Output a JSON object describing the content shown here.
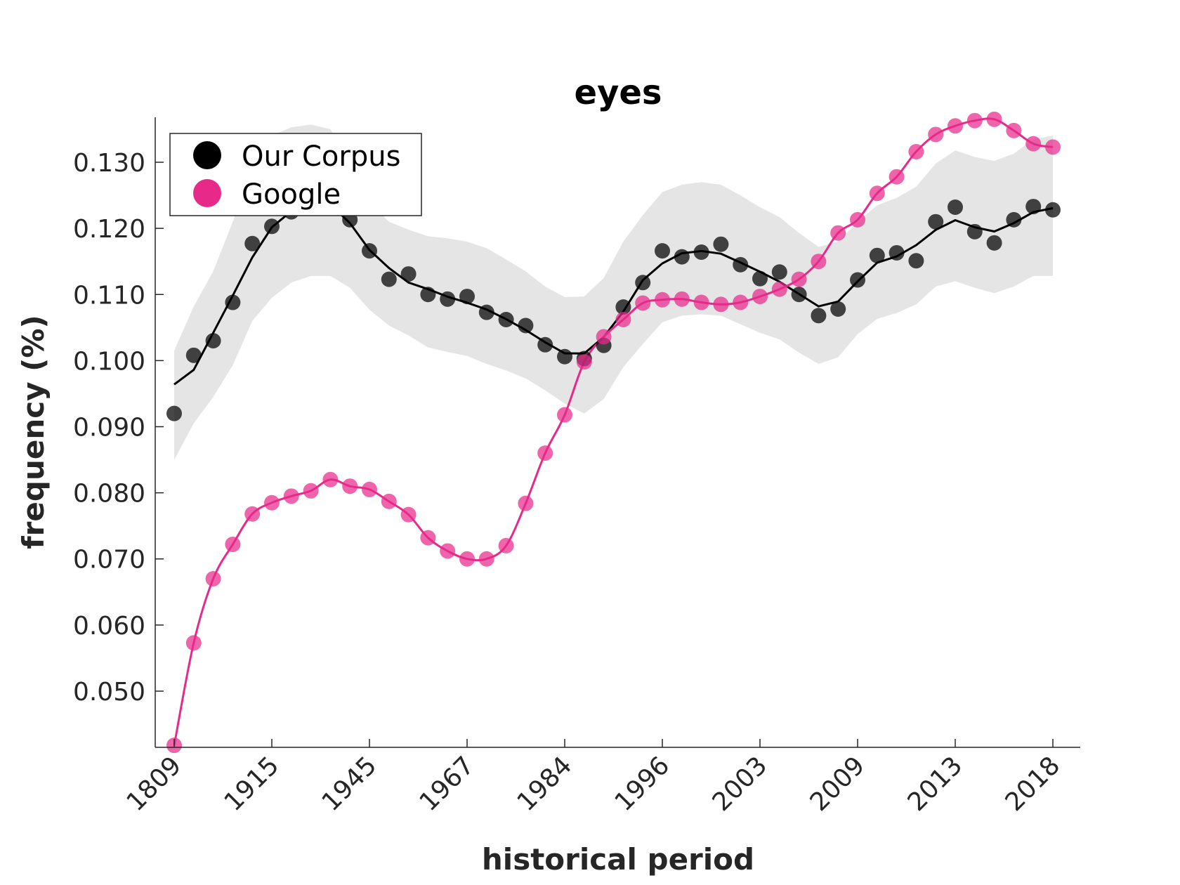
{
  "chart_data": {
    "type": "line",
    "title": "eyes",
    "xlabel": "historical period",
    "ylabel": "frequency (%)",
    "ylim": [
      0.0415,
      0.1368
    ],
    "grid": false,
    "legend_position": "top-left",
    "x_tick_labels": [
      "1809",
      "1915",
      "1945",
      "1967",
      "1984",
      "1996",
      "2003",
      "2009",
      "2013",
      "2018"
    ],
    "x_tick_index": [
      0,
      5,
      10,
      15,
      20,
      25,
      30,
      35,
      40,
      45
    ],
    "y_ticks": [
      0.05,
      0.06,
      0.07,
      0.08,
      0.09,
      0.1,
      0.11,
      0.12,
      0.13
    ],
    "y_tick_labels": [
      "0.050",
      "0.060",
      "0.070",
      "0.080",
      "0.090",
      "0.100",
      "0.110",
      "0.120",
      "0.130"
    ],
    "colors": {
      "corpus": "#000000",
      "google": "#e7298a",
      "band": "#e5e5e5"
    },
    "series": [
      {
        "name": "Our Corpus",
        "values": [
          0.092,
          0.1008,
          0.103,
          0.1088,
          0.1177,
          0.1203,
          0.1225,
          0.125,
          0.1245,
          0.1213,
          0.1166,
          0.1123,
          0.1131,
          0.11,
          0.1093,
          0.1097,
          0.1073,
          0.1062,
          0.1053,
          0.1024,
          0.1006,
          0.1003,
          0.1023,
          0.1081,
          0.1118,
          0.1166,
          0.1157,
          0.1164,
          0.1176,
          0.1145,
          0.1124,
          0.1134,
          0.11,
          0.1068,
          0.1078,
          0.1122,
          0.1159,
          0.1163,
          0.1151,
          0.121,
          0.1232,
          0.1195,
          0.1178,
          0.1213,
          0.1233,
          0.1228
        ],
        "band_upper": [
          0.1015,
          0.1082,
          0.1135,
          0.121,
          0.129,
          0.134,
          0.1353,
          0.1357,
          0.135,
          0.13,
          0.124,
          0.121,
          0.1198,
          0.1188,
          0.1185,
          0.118,
          0.117,
          0.1153,
          0.1135,
          0.1112,
          0.1096,
          0.1097,
          0.1125,
          0.118,
          0.122,
          0.1255,
          0.1266,
          0.127,
          0.1266,
          0.125,
          0.1232,
          0.1217,
          0.1193,
          0.1172,
          0.118,
          0.121,
          0.1235,
          0.1246,
          0.1263,
          0.1298,
          0.1318,
          0.1308,
          0.1302,
          0.1313,
          0.1335,
          0.134
        ],
        "band_lower": [
          0.085,
          0.0905,
          0.0945,
          0.0993,
          0.106,
          0.1095,
          0.1118,
          0.1128,
          0.1128,
          0.111,
          0.1077,
          0.1053,
          0.1038,
          0.102,
          0.1013,
          0.1007,
          0.0995,
          0.0985,
          0.0973,
          0.0955,
          0.0935,
          0.092,
          0.0942,
          0.099,
          0.1025,
          0.1058,
          0.1068,
          0.107,
          0.1068,
          0.1055,
          0.1042,
          0.1032,
          0.1012,
          0.0995,
          0.1005,
          0.104,
          0.1063,
          0.1072,
          0.1085,
          0.1112,
          0.112,
          0.111,
          0.1102,
          0.1112,
          0.1128,
          0.1128
        ]
      },
      {
        "name": "Google",
        "values": [
          0.0418,
          0.0573,
          0.067,
          0.0722,
          0.0768,
          0.0785,
          0.0795,
          0.0803,
          0.082,
          0.081,
          0.0805,
          0.0787,
          0.0767,
          0.0732,
          0.0712,
          0.07,
          0.07,
          0.072,
          0.0784,
          0.086,
          0.0918,
          0.0998,
          0.1036,
          0.1062,
          0.1087,
          0.1092,
          0.1093,
          0.1088,
          0.1085,
          0.1088,
          0.1097,
          0.1108,
          0.1123,
          0.115,
          0.1193,
          0.1213,
          0.1253,
          0.1278,
          0.1316,
          0.1342,
          0.1355,
          0.1363,
          0.1365,
          0.1348,
          0.1328,
          0.1323
        ]
      }
    ]
  }
}
